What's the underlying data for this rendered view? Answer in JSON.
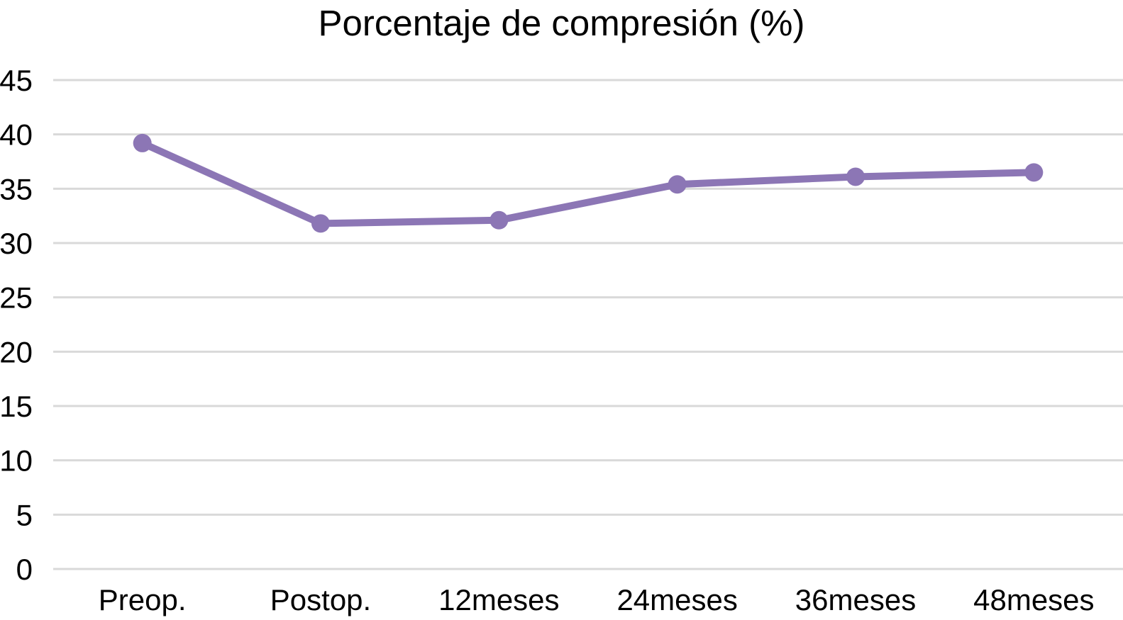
{
  "chart_data": {
    "type": "line",
    "title": "Porcentaje de compresión (%)",
    "categories": [
      "Preop.",
      "Postop.",
      "12meses",
      "24meses",
      "36meses",
      "48meses"
    ],
    "series": [
      {
        "name": "Porcentaje de compresión",
        "values": [
          39.2,
          31.8,
          32.1,
          35.4,
          36.1,
          36.5
        ]
      }
    ],
    "xlabel": "",
    "ylabel": "",
    "ylim": [
      0,
      45
    ],
    "yticks": [
      0,
      5,
      10,
      15,
      20,
      25,
      30,
      35,
      40,
      45
    ],
    "grid": "horizontal",
    "legend_position": "none",
    "line_color": "#8c76b5",
    "marker_color": "#8c76b5",
    "gridline_color": "#d9d9d9",
    "text_color": "#000000",
    "background_color": "#ffffff"
  }
}
